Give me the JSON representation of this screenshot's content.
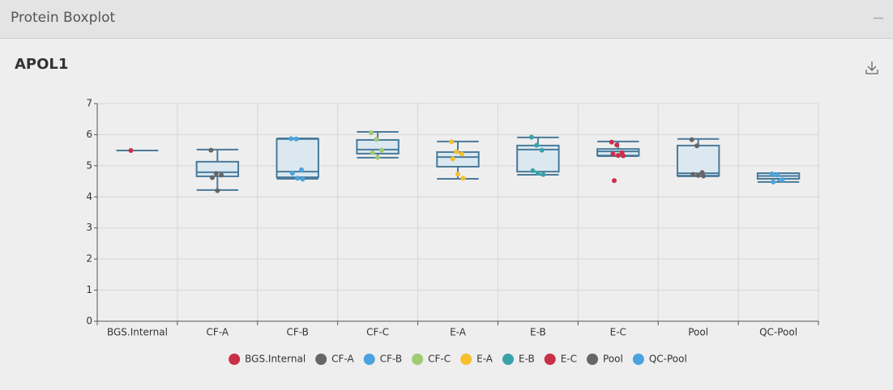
{
  "panel": {
    "title": "Protein Boxplot"
  },
  "chart_data": {
    "type": "boxplot",
    "title": "APOL1",
    "ylim": [
      0,
      7
    ],
    "yticks": [
      0,
      1,
      2,
      3,
      4,
      5,
      6,
      7
    ],
    "grid": true,
    "box_color": "#4a7a9a",
    "box_fill": "#dbe8f0",
    "categories": [
      "BGS.Internal",
      "CF-A",
      "CF-B",
      "CF-C",
      "E-A",
      "E-B",
      "E-C",
      "Pool",
      "QC-Pool"
    ],
    "series": [
      {
        "name": "BGS.Internal",
        "color": "#c8304a",
        "min": 5.49,
        "q1": 5.49,
        "median": 5.49,
        "q3": 5.49,
        "max": 5.49,
        "points": [
          5.49
        ]
      },
      {
        "name": "CF-A",
        "color": "#666666",
        "min": 4.22,
        "q1": 4.66,
        "median": 4.79,
        "q3": 5.13,
        "max": 5.52,
        "points": [
          5.5,
          4.75,
          4.7,
          4.62,
          4.2
        ]
      },
      {
        "name": "CF-B",
        "color": "#4aa3df",
        "min": 4.58,
        "q1": 4.63,
        "median": 4.81,
        "q3": 5.86,
        "max": 5.88,
        "points": [
          5.87,
          5.86,
          4.87,
          4.76,
          4.6,
          4.57
        ]
      },
      {
        "name": "CF-C",
        "color": "#9fcb73",
        "min": 5.26,
        "q1": 5.39,
        "median": 5.52,
        "q3": 5.83,
        "max": 6.09,
        "points": [
          6.06,
          5.85,
          5.5,
          5.42,
          5.27
        ]
      },
      {
        "name": "E-A",
        "color": "#f5c02b",
        "min": 4.58,
        "q1": 4.97,
        "median": 5.28,
        "q3": 5.44,
        "max": 5.78,
        "points": [
          5.77,
          5.45,
          5.38,
          5.22,
          4.73,
          4.6
        ]
      },
      {
        "name": "E-B",
        "color": "#3aa3a8",
        "min": 4.71,
        "q1": 4.81,
        "median": 5.52,
        "q3": 5.65,
        "max": 5.91,
        "points": [
          5.92,
          5.66,
          5.5,
          4.84,
          4.76,
          4.72
        ]
      },
      {
        "name": "E-C",
        "color": "#c8304a",
        "min": 5.31,
        "q1": 5.33,
        "median": 5.46,
        "q3": 5.54,
        "max": 5.78,
        "points": [
          5.76,
          5.67,
          5.42,
          5.38,
          5.33,
          5.32,
          4.52
        ]
      },
      {
        "name": "Pool",
        "color": "#666666",
        "min": 4.66,
        "q1": 4.68,
        "median": 4.76,
        "q3": 5.65,
        "max": 5.86,
        "points": [
          5.84,
          5.64,
          4.78,
          4.72,
          4.69,
          4.67
        ]
      },
      {
        "name": "QC-Pool",
        "color": "#4aa3df",
        "min": 4.48,
        "q1": 4.58,
        "median": 4.67,
        "q3": 4.76,
        "max": 4.76,
        "points": [
          4.74,
          4.7,
          4.55,
          4.48
        ]
      }
    ]
  }
}
